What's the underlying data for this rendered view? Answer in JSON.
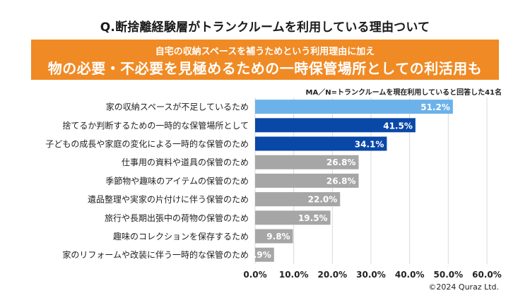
{
  "header": {
    "title": "Q.断捨離経験層がトランクルームを利用している理由ついて",
    "banner_sub": "自宅の収納スペースを補うためという利用理由に加え",
    "banner_main": "物の必要・不必要を見極めるための一時保管場所としての利活用も",
    "note": "MA／N=トランクルームを現在利用していると回答した41名"
  },
  "footer": {
    "copyright": "©2024 Quraz Ltd."
  },
  "colors": {
    "banner": "#f08a24",
    "light_blue": "#6cb2ea",
    "dark_blue": "#0a48a8",
    "gray": "#a6a6a6"
  },
  "chart_data": {
    "type": "bar",
    "orientation": "horizontal",
    "title": "Q.断捨離経験層がトランクルームを利用している理由ついて",
    "xlabel": "",
    "ylabel": "",
    "xlim": [
      0,
      60
    ],
    "grid": true,
    "x_ticks": [
      "0.0%",
      "10.0%",
      "20.0%",
      "30.0%",
      "40.0%",
      "50.0%",
      "60.0%"
    ],
    "categories": [
      "家の収納スペースが不足しているため",
      "捨てるか判断するための一時的な保管場所として",
      "子どもの成長や家庭の変化による一時的な保管のため",
      "仕事用の資料や道具の保管のため",
      "季節物や趣味のアイテムの保管のため",
      "遺品整理や実家の片付けに伴う保管のため",
      "旅行や長期出張中の荷物の保管のため",
      "趣味のコレクションを保存するため",
      "家のリフォームや改装に伴う一時的な保管のため"
    ],
    "values": [
      51.2,
      41.5,
      34.1,
      26.8,
      26.8,
      22.0,
      19.5,
      9.8,
      4.9
    ],
    "value_labels": [
      "51.2%",
      "41.5%",
      "34.1%",
      "26.8%",
      "26.8%",
      "22.0%",
      "19.5%",
      "9.8%",
      "4.9%"
    ],
    "bar_colors": [
      "#6cb2ea",
      "#0a48a8",
      "#0a48a8",
      "#a6a6a6",
      "#a6a6a6",
      "#a6a6a6",
      "#a6a6a6",
      "#a6a6a6",
      "#a6a6a6"
    ]
  }
}
